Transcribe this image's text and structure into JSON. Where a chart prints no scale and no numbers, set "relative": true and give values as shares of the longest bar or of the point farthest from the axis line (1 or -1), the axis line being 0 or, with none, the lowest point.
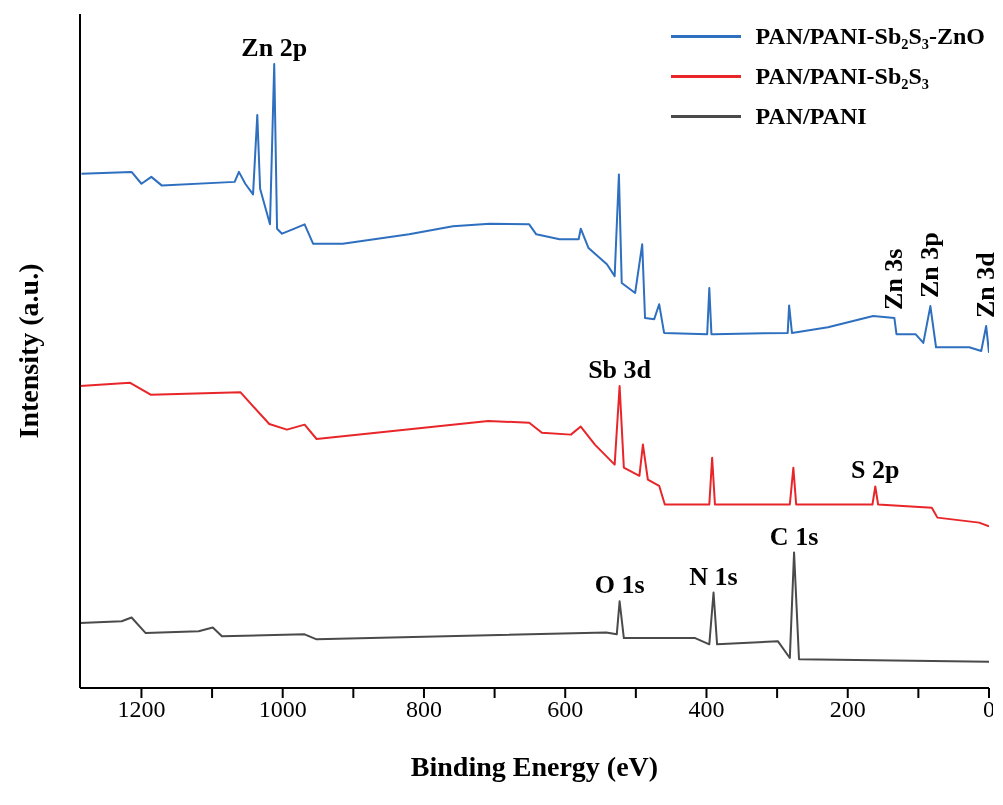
{
  "chart_data": {
    "type": "line",
    "xlabel": "Binding Energy (eV)",
    "ylabel": "Intensity (a.u.)",
    "relative": true,
    "xlim": [
      1287,
      0
    ],
    "xticks": [
      0,
      {
        "value": 100,
        "label": null
      },
      200,
      {
        "value": 300,
        "label": null
      },
      400,
      {
        "value": 500,
        "label": null
      },
      600,
      {
        "value": 700,
        "label": null
      },
      800,
      {
        "value": 900,
        "label": null
      },
      1000,
      {
        "value": 1100,
        "label": null
      },
      1200
    ],
    "legend": "top right",
    "marker": "none",
    "line_style": "solid",
    "series": [
      {
        "name": "PAN/PANI-Sb₂S₃-ZnO",
        "color": "#2e6fbf",
        "x": [
          1285,
          1214,
          1200,
          1186,
          1171,
          1068,
          1062,
          1053,
          1042,
          1036,
          1032,
          1018,
          1012,
          1008,
          1001,
          986,
          969,
          957,
          915,
          821,
          759,
          707,
          651,
          641,
          608,
          581,
          578,
          567,
          541,
          530,
          524,
          520,
          501,
          491,
          487,
          474,
          467,
          460,
          399,
          396,
          393,
          390,
          285,
          283,
          279,
          228,
          164,
          134,
          131,
          104,
          93,
          83,
          75,
          28,
          11,
          4,
          0
        ],
        "values": [
          0.824,
          0.827,
          0.808,
          0.819,
          0.805,
          0.811,
          0.827,
          0.808,
          0.791,
          0.918,
          0.8,
          0.743,
          1.0,
          0.736,
          0.728,
          0.735,
          0.743,
          0.712,
          0.712,
          0.727,
          0.74,
          0.744,
          0.743,
          0.727,
          0.719,
          0.719,
          0.736,
          0.705,
          0.679,
          0.66,
          0.823,
          0.649,
          0.633,
          0.711,
          0.593,
          0.591,
          0.615,
          0.569,
          0.567,
          0.641,
          0.567,
          0.567,
          0.569,
          0.613,
          0.569,
          0.578,
          0.596,
          0.593,
          0.567,
          0.567,
          0.553,
          0.612,
          0.546,
          0.546,
          0.54,
          0.58,
          0.537
        ]
      },
      {
        "name": "PAN/PANI-Sb₂S₃",
        "color": "#e8262a",
        "x": [
          1287,
          1216,
          1187,
          1060,
          1019,
          994,
          969,
          952,
          709,
          651,
          633,
          592,
          578,
          558,
          530,
          523,
          517,
          495,
          490,
          483,
          467,
          459,
          396,
          392,
          388,
          282,
          277,
          273,
          165,
          161,
          157,
          81,
          73,
          14,
          0
        ],
        "values": [
          0.484,
          0.489,
          0.47,
          0.474,
          0.423,
          0.414,
          0.422,
          0.399,
          0.428,
          0.425,
          0.409,
          0.406,
          0.419,
          0.39,
          0.358,
          0.484,
          0.353,
          0.34,
          0.39,
          0.334,
          0.324,
          0.294,
          0.294,
          0.369,
          0.294,
          0.294,
          0.353,
          0.294,
          0.294,
          0.323,
          0.294,
          0.289,
          0.273,
          0.265,
          0.259
        ]
      },
      {
        "name": "PAN/PANI",
        "color": "#4a4a4a",
        "x": [
          1287,
          1228,
          1214,
          1194,
          1119,
          1099,
          1086,
          969,
          952,
          542,
          527,
          523,
          517,
          416,
          396,
          390,
          385,
          299,
          282,
          276,
          269,
          0
        ],
        "values": [
          0.104,
          0.107,
          0.113,
          0.088,
          0.091,
          0.097,
          0.083,
          0.086,
          0.078,
          0.089,
          0.086,
          0.139,
          0.08,
          0.08,
          0.07,
          0.153,
          0.07,
          0.075,
          0.048,
          0.217,
          0.046,
          0.042
        ]
      }
    ],
    "annotations": [
      {
        "text": "Zn 2p",
        "x": 1012,
        "y": 1.0
      },
      {
        "text": "Zn 3s",
        "x": 134,
        "y": 0.593
      },
      {
        "text": "Zn 3p",
        "x": 83,
        "y": 0.612
      },
      {
        "text": "Zn 3d",
        "x": 4,
        "y": 0.58
      },
      {
        "text": "Sb 3d",
        "x": 523,
        "y": 0.484
      },
      {
        "text": "S 2p",
        "x": 161,
        "y": 0.323
      },
      {
        "text": "O 1s",
        "x": 523,
        "y": 0.139
      },
      {
        "text": "N 1s",
        "x": 390,
        "y": 0.153
      },
      {
        "text": "C 1s",
        "x": 276,
        "y": 0.217
      }
    ]
  }
}
